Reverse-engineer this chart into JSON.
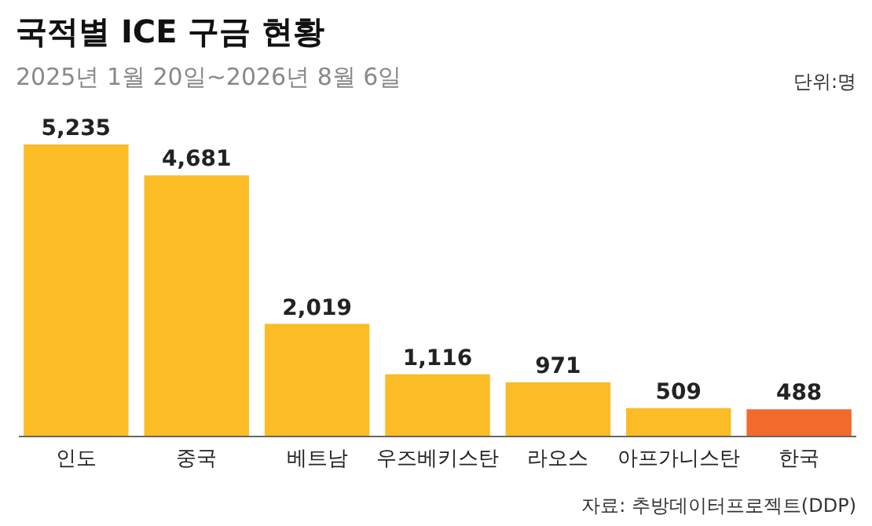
{
  "chart_data": {
    "type": "bar",
    "title": "국적별 ICE 구금 현황",
    "subtitle": "2025년 1월 20일~2026년 8월 6일",
    "categories": [
      "인도",
      "중국",
      "베트남",
      "우즈베키스탄",
      "라오스",
      "아프가니스탄",
      "한국"
    ],
    "values": [
      5235,
      4681,
      2019,
      1116,
      971,
      509,
      488
    ],
    "colors": [
      "#fbbc26",
      "#fbbc26",
      "#fbbc26",
      "#fbbc26",
      "#fbbc26",
      "#fbbc26",
      "#f26a2c"
    ],
    "value_labels": [
      "5,235",
      "4,681",
      "2,019",
      "1,116",
      "971",
      "509",
      "488"
    ],
    "annotations": [
      "단위:명",
      "자료: 추방데이터프로젝트(DDP)"
    ]
  }
}
